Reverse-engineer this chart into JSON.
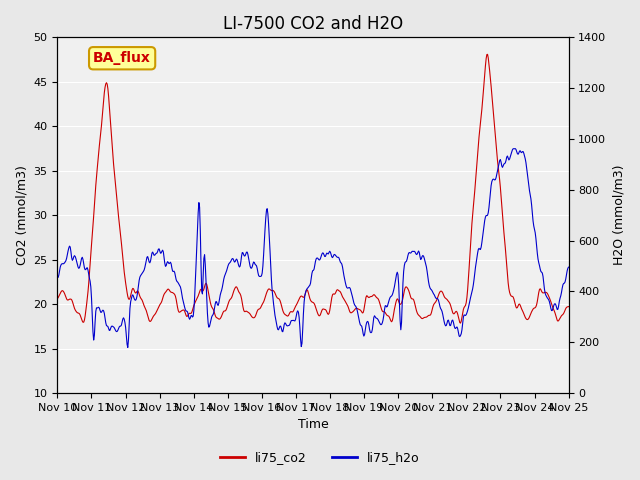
{
  "title": "LI-7500 CO2 and H2O",
  "xlabel": "Time",
  "ylabel_left": "CO2 (mmol/m3)",
  "ylabel_right": "H2O (mmol/m3)",
  "ylim_left": [
    10,
    50
  ],
  "ylim_right": [
    0,
    1400
  ],
  "yticks_left": [
    10,
    15,
    20,
    25,
    30,
    35,
    40,
    45,
    50
  ],
  "yticks_right": [
    0,
    200,
    400,
    600,
    800,
    1000,
    1200,
    1400
  ],
  "xtick_labels": [
    "Nov 10",
    "Nov 11",
    "Nov 12",
    "Nov 13",
    "Nov 14",
    "Nov 15",
    "Nov 16",
    "Nov 17",
    "Nov 18",
    "Nov 19",
    "Nov 20",
    "Nov 21",
    "Nov 22",
    "Nov 23",
    "Nov 24",
    "Nov 25"
  ],
  "color_co2": "#cc0000",
  "color_h2o": "#0000cc",
  "legend_entries": [
    "li75_co2",
    "li75_h2o"
  ],
  "annotation_text": "BA_flux",
  "annotation_bg": "#ffff99",
  "annotation_border": "#cc9900",
  "annotation_text_color": "#cc0000",
  "bg_color": "#e8e8e8",
  "plot_bg_color": "#f0f0f0",
  "title_fontsize": 12,
  "label_fontsize": 9,
  "tick_fontsize": 8,
  "legend_fontsize": 9
}
